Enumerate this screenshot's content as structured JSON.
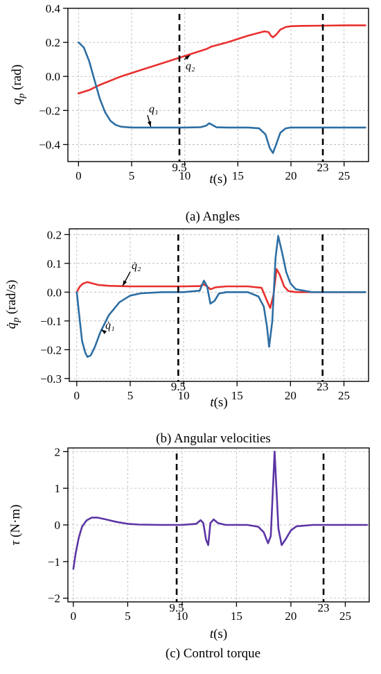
{
  "chart_data": [
    {
      "type": "line",
      "caption": "(a) Angles",
      "ylabel": "q_p (rad)",
      "xlabel": "t(s)",
      "xlim": [
        -1,
        27.3
      ],
      "ylim": [
        -0.5,
        0.4
      ],
      "xticks": [
        0,
        5,
        10,
        15,
        20,
        25
      ],
      "yticks": [
        -0.4,
        -0.2,
        0.0,
        0.2,
        0.4
      ],
      "ytick_labels": [
        "−0.4",
        "−0.2",
        "0.0",
        "0.2",
        "0.4"
      ],
      "grid": true,
      "vlines": [
        {
          "x": 9.5,
          "label": "9.5"
        },
        {
          "x": 23,
          "label": "23"
        }
      ],
      "series": [
        {
          "name": "q2",
          "color": "#e8302e",
          "x": [
            0,
            1,
            2,
            4,
            6,
            8,
            10,
            12,
            12.5,
            14,
            16,
            17.5,
            17.9,
            18.1,
            18.3,
            18.6,
            19,
            19.5,
            20,
            21,
            23,
            25,
            27
          ],
          "y": [
            -0.1,
            -0.08,
            -0.05,
            0.0,
            0.04,
            0.08,
            0.12,
            0.16,
            0.175,
            0.2,
            0.24,
            0.265,
            0.26,
            0.24,
            0.23,
            0.245,
            0.275,
            0.29,
            0.295,
            0.297,
            0.298,
            0.3,
            0.3
          ]
        },
        {
          "name": "q1",
          "color": "#2c6ea3",
          "x": [
            0,
            0.5,
            1,
            1.5,
            2,
            2.5,
            3,
            3.5,
            4,
            5,
            6,
            8,
            10,
            11.5,
            12,
            12.3,
            12.6,
            13,
            14,
            16,
            17,
            17.6,
            18,
            18.3,
            18.6,
            19,
            19.5,
            20,
            21,
            23,
            25,
            27
          ],
          "y": [
            0.2,
            0.17,
            0.09,
            -0.02,
            -0.13,
            -0.21,
            -0.26,
            -0.285,
            -0.295,
            -0.3,
            -0.3,
            -0.3,
            -0.3,
            -0.298,
            -0.29,
            -0.275,
            -0.285,
            -0.299,
            -0.3,
            -0.3,
            -0.305,
            -0.34,
            -0.42,
            -0.45,
            -0.4,
            -0.33,
            -0.305,
            -0.3,
            -0.3,
            -0.3,
            -0.3,
            -0.3
          ]
        }
      ],
      "annotations": [
        {
          "text": "q₂",
          "x": 11.5,
          "y": 0.02,
          "target_x": 10.5,
          "target_y": 0.125
        },
        {
          "text": "q₁",
          "x": 8.0,
          "y": -0.2,
          "target_x": 6.8,
          "target_y": -0.295
        }
      ]
    },
    {
      "type": "line",
      "caption": "(b) Angular velocities",
      "ylabel": "q̇_p (rad/s)",
      "xlabel": "t(s)",
      "xlim": [
        -0.7,
        27.3
      ],
      "ylim": [
        -0.31,
        0.22
      ],
      "xticks": [
        0,
        5,
        10,
        15,
        20,
        25
      ],
      "yticks": [
        -0.3,
        -0.2,
        -0.1,
        0.0,
        0.1,
        0.2
      ],
      "ytick_labels": [
        "−0.3",
        "−0.2",
        "−0.1",
        "0.0",
        "0.1",
        "0.2"
      ],
      "grid": true,
      "vlines": [
        {
          "x": 9.5,
          "label": "9.5"
        },
        {
          "x": 23,
          "label": "23"
        }
      ],
      "series": [
        {
          "name": "q̇₂",
          "color": "#e8302e",
          "x": [
            0,
            0.3,
            0.6,
            1,
            1.5,
            2,
            3,
            5,
            8,
            10,
            11.5,
            11.9,
            12.2,
            12.5,
            13,
            14,
            16,
            17.3,
            17.8,
            18.1,
            18.4,
            18.7,
            19,
            19.4,
            19.8,
            20.5,
            22,
            25,
            27
          ],
          "y": [
            0.0,
            0.02,
            0.03,
            0.035,
            0.03,
            0.025,
            0.022,
            0.02,
            0.02,
            0.02,
            0.021,
            0.027,
            0.02,
            0.01,
            0.017,
            0.02,
            0.02,
            0.015,
            -0.03,
            -0.055,
            -0.01,
            0.08,
            0.06,
            0.02,
            0.004,
            0.0,
            0.0,
            0.0,
            0.0
          ]
        },
        {
          "name": "q̇₁",
          "color": "#2c6ea3",
          "x": [
            0,
            0.2,
            0.5,
            0.8,
            1,
            1.3,
            1.7,
            2.2,
            3,
            4,
            5,
            6,
            8,
            10,
            11.5,
            11.9,
            12.2,
            12.5,
            12.9,
            13.3,
            14,
            16,
            17,
            17.5,
            17.8,
            18,
            18.3,
            18.6,
            18.85,
            19.2,
            19.6,
            20,
            20.5,
            22,
            25,
            27
          ],
          "y": [
            0.0,
            -0.07,
            -0.17,
            -0.21,
            -0.225,
            -0.22,
            -0.19,
            -0.14,
            -0.08,
            -0.035,
            -0.012,
            -0.004,
            0.0,
            0.0,
            0.005,
            0.04,
            0.02,
            -0.04,
            -0.03,
            -0.005,
            0.0,
            0.0,
            -0.015,
            -0.05,
            -0.12,
            -0.19,
            -0.1,
            0.12,
            0.195,
            0.14,
            0.07,
            0.03,
            0.01,
            0.0,
            0.0,
            0.0
          ]
        }
      ],
      "annotations": [
        {
          "text": "q̇₂",
          "x": 5.3,
          "y": 0.065,
          "target_x": 4.3,
          "target_y": 0.022
        },
        {
          "text": "q̇₁",
          "x": 3.2,
          "y": -0.15,
          "target_x": 2.3,
          "target_y": -0.13
        }
      ]
    },
    {
      "type": "line",
      "caption": "(c) Control torque",
      "ylabel": "τ (N·m)",
      "xlabel": "t(s)",
      "xlim": [
        -0.5,
        27.2
      ],
      "ylim": [
        -2.1,
        2.1
      ],
      "xticks": [
        0,
        5,
        10,
        15,
        20,
        25
      ],
      "yticks": [
        -2,
        -1,
        0,
        1,
        2
      ],
      "ytick_labels": [
        "−2",
        "−1",
        "0",
        "1",
        "2"
      ],
      "grid": true,
      "vlines": [
        {
          "x": 9.5,
          "label": "9.5"
        },
        {
          "x": 23,
          "label": "23"
        }
      ],
      "series": [
        {
          "name": "τ",
          "color": "#5b35a4",
          "x": [
            0,
            0.2,
            0.5,
            0.8,
            1.2,
            1.7,
            2.2,
            3,
            4,
            5,
            6,
            8,
            10,
            11.3,
            11.7,
            11.95,
            12.2,
            12.4,
            12.6,
            12.9,
            13.3,
            14,
            16,
            17,
            17.5,
            17.9,
            18.15,
            18.5,
            18.85,
            19.15,
            19.5,
            20,
            20.5,
            22,
            25,
            27
          ],
          "y": [
            -1.2,
            -0.8,
            -0.35,
            -0.05,
            0.12,
            0.2,
            0.2,
            0.15,
            0.08,
            0.03,
            0.01,
            0.0,
            0.0,
            0.03,
            0.13,
            0.05,
            -0.4,
            -0.55,
            0.05,
            0.15,
            0.05,
            0.0,
            0.0,
            -0.05,
            -0.2,
            -0.5,
            -0.3,
            2.0,
            -0.1,
            -0.55,
            -0.4,
            -0.15,
            -0.04,
            0.0,
            0.0,
            0.0
          ]
        }
      ],
      "annotations": []
    }
  ],
  "colors": {
    "q1": "#2c6ea3",
    "q2": "#e8302e",
    "tau": "#5b35a4",
    "grid": "#b3b3b3"
  }
}
